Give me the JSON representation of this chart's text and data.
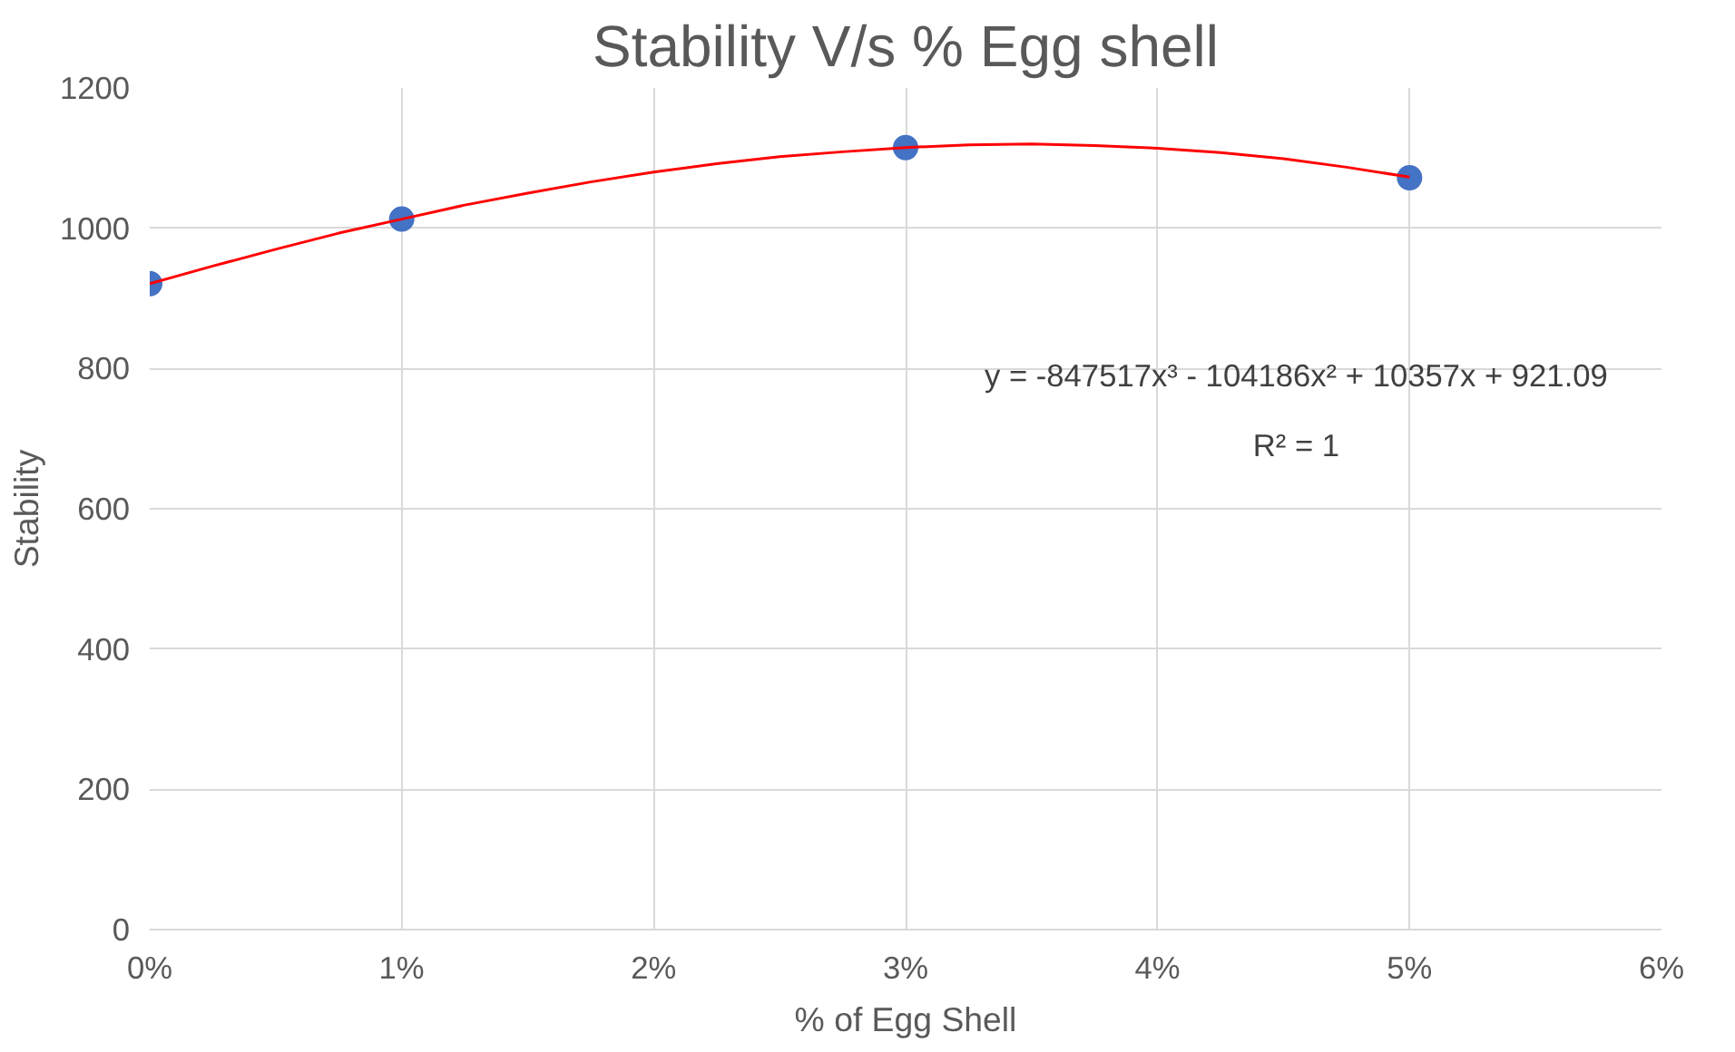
{
  "chart_data": {
    "type": "scatter",
    "title": "Stability V/s % Egg shell",
    "xlabel": "% of Egg Shell",
    "ylabel": "Stability",
    "series": [
      {
        "color": "#4472c4",
        "marker": "circle",
        "x": [
          0,
          0.01,
          0.03,
          0.05
        ],
        "values": [
          921,
          1013,
          1115,
          1072
        ]
      },
      {
        "type": "line",
        "color": "#ff0000",
        "marker": "none",
        "line_style": "solid",
        "x": [
          0,
          0.0025,
          0.005,
          0.0075,
          0.01,
          0.0125,
          0.015,
          0.0175,
          0.02,
          0.0225,
          0.025,
          0.0275,
          0.03,
          0.0325,
          0.035,
          0.0375,
          0.04,
          0.0425,
          0.045,
          0.0475,
          0.05
        ],
        "values": [
          921,
          946,
          970,
          993,
          1013,
          1033,
          1050,
          1066,
          1080,
          1092,
          1102,
          1109,
          1115,
          1119,
          1120,
          1118,
          1114,
          1108,
          1099,
          1087,
          1073
        ]
      }
    ],
    "annotations": [
      "y = -847517x³ - 104186x² + 10357x + 921.09",
      "R² = 1"
    ],
    "xlim": [
      0,
      0.06
    ],
    "ylim": [
      0,
      1200
    ],
    "xticks": [
      {
        "value": 0,
        "label": "0%"
      },
      {
        "value": 0.01,
        "label": "1%"
      },
      {
        "value": 0.02,
        "label": "2%"
      },
      {
        "value": 0.03,
        "label": "3%"
      },
      {
        "value": 0.04,
        "label": "4%"
      },
      {
        "value": 0.05,
        "label": "5%"
      },
      {
        "value": 0.06,
        "label": "6%"
      }
    ],
    "yticks": [
      0,
      200,
      400,
      600,
      800,
      1000,
      1200
    ],
    "grid": true
  }
}
